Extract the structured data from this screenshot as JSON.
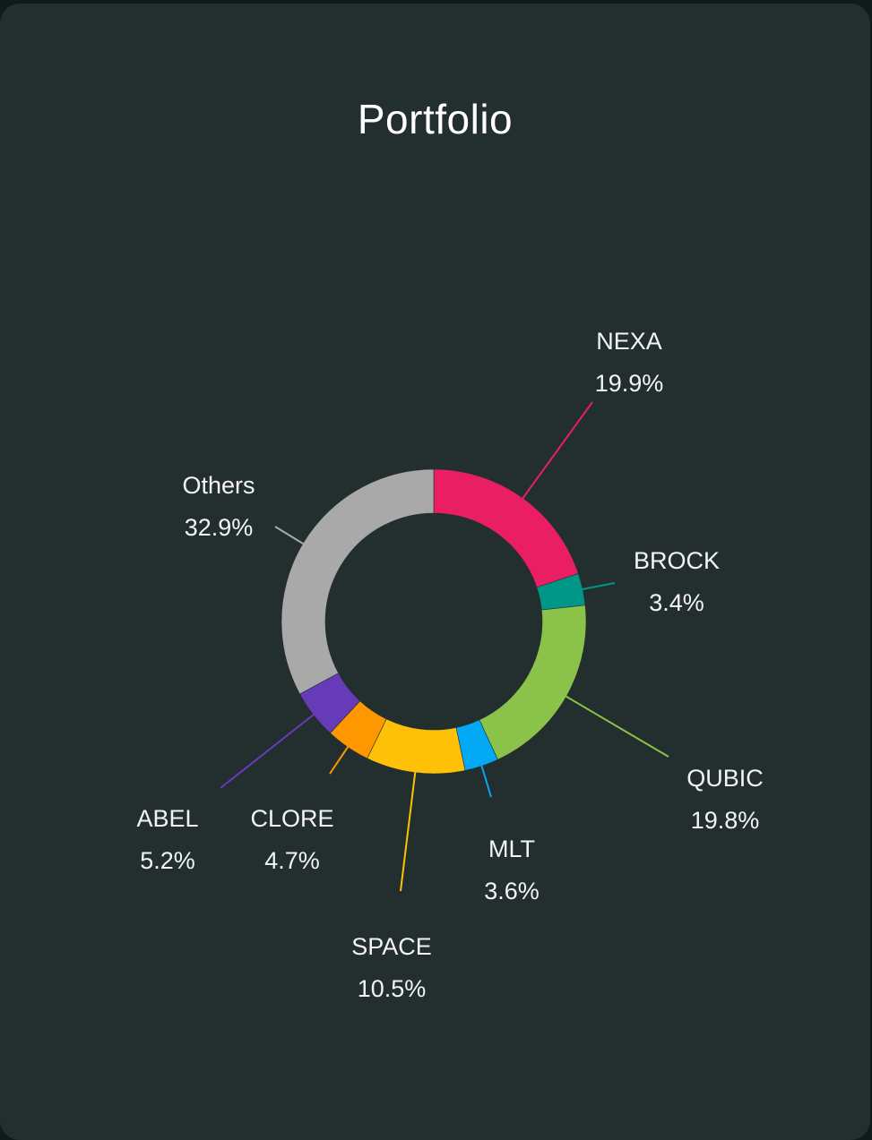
{
  "header": {
    "title": "Portfolio"
  },
  "chart_data": {
    "type": "pie",
    "title": "Portfolio",
    "donut": true,
    "slices": [
      {
        "label": "NEXA",
        "percent_text": "19.9%",
        "value": 19.9,
        "color": "#e91e63"
      },
      {
        "label": "BROCK",
        "percent_text": "3.4%",
        "value": 3.4,
        "color": "#009688"
      },
      {
        "label": "QUBIC",
        "percent_text": "19.8%",
        "value": 19.8,
        "color": "#8bc34a"
      },
      {
        "label": "MLT",
        "percent_text": "3.6%",
        "value": 3.6,
        "color": "#03a9f4"
      },
      {
        "label": "SPACE",
        "percent_text": "10.5%",
        "value": 10.5,
        "color": "#ffc107"
      },
      {
        "label": "CLORE",
        "percent_text": "4.7%",
        "value": 4.7,
        "color": "#ff9800"
      },
      {
        "label": "ABEL",
        "percent_text": "5.2%",
        "value": 5.2,
        "color": "#673ab7"
      },
      {
        "label": "Others",
        "percent_text": "32.9%",
        "value": 32.9,
        "color": "#a9a9a9"
      }
    ]
  }
}
